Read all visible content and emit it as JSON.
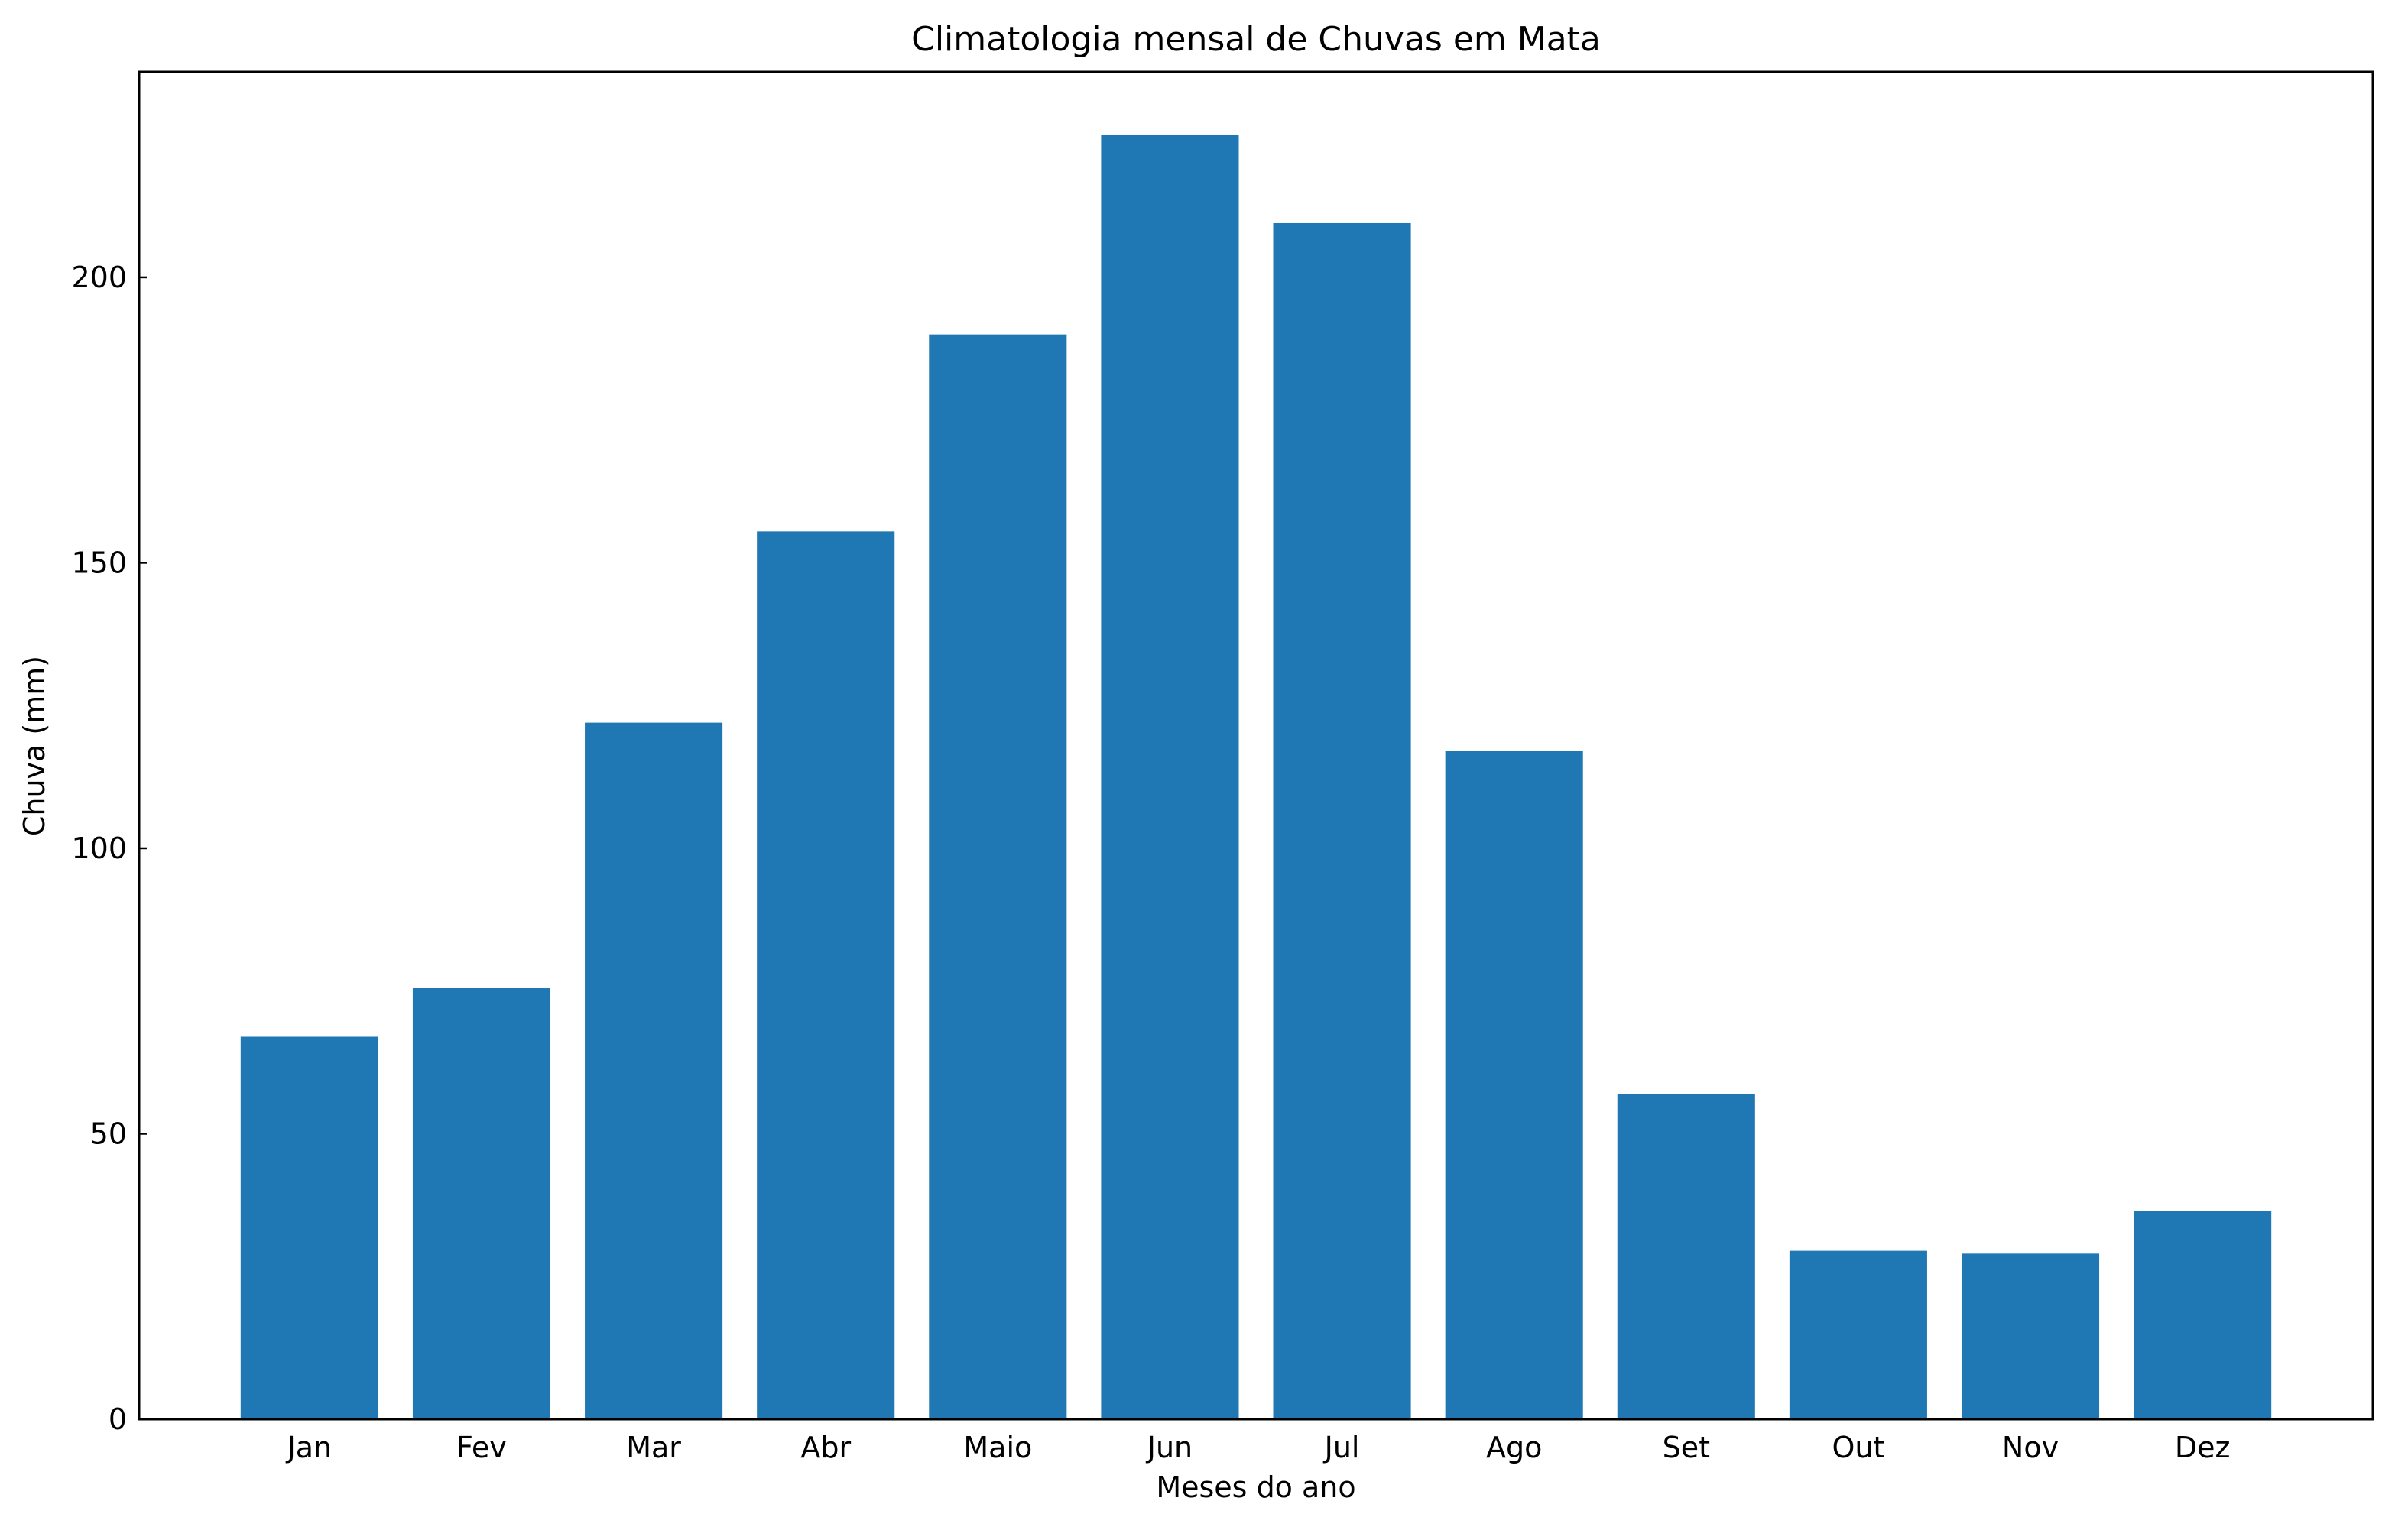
{
  "chart_data": {
    "type": "bar",
    "title": "Climatologia mensal de Chuvas em Mata",
    "xlabel": "Meses do ano",
    "ylabel": "Chuva (mm)",
    "categories": [
      "Jan",
      "Fev",
      "Mar",
      "Abr",
      "Maio",
      "Jun",
      "Jul",
      "Ago",
      "Set",
      "Out",
      "Nov",
      "Dez"
    ],
    "values": [
      67,
      75.5,
      122,
      155.5,
      190,
      225,
      209.5,
      117,
      57,
      29.5,
      29,
      36.5
    ],
    "ylim": [
      0,
      236
    ],
    "yticks": [
      0,
      50,
      100,
      150,
      200
    ],
    "grid": false,
    "bar_color": "#1f77b4"
  }
}
